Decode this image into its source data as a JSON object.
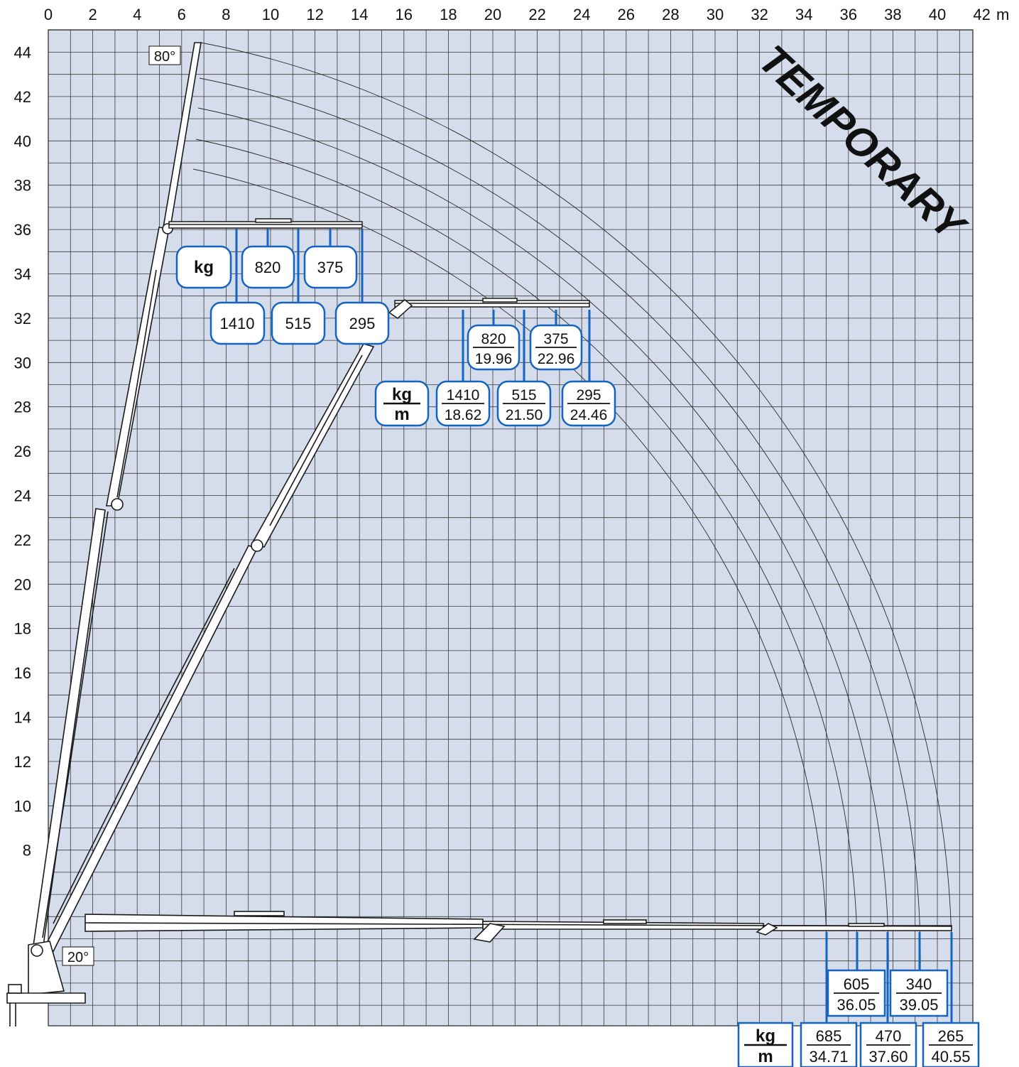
{
  "chart": {
    "x_axis": {
      "ticks": [
        "0",
        "2",
        "4",
        "6",
        "8",
        "10",
        "12",
        "14",
        "16",
        "18",
        "20",
        "22",
        "24",
        "26",
        "28",
        "30",
        "32",
        "34",
        "36",
        "38",
        "40",
        "42"
      ],
      "unit": "m"
    },
    "y_axis": {
      "ticks": [
        "8",
        "10",
        "12",
        "14",
        "16",
        "18",
        "20",
        "22",
        "24",
        "26",
        "28",
        "30",
        "32",
        "34",
        "36",
        "38",
        "40",
        "42",
        "44"
      ]
    },
    "stamp": "TEMPORARY",
    "angle_labels": {
      "top": "80°",
      "bottom": "20°"
    },
    "colors": {
      "grid_bg": "#d5dcec",
      "grid_line": "#3a3a3a",
      "accent_blue": "#1565c0",
      "box_border": "#1565c0"
    }
  },
  "load_tables": {
    "top": {
      "unit_label": "kg",
      "upper": [
        "820",
        "375"
      ],
      "lower": [
        "1410",
        "515",
        "295"
      ]
    },
    "middle": {
      "unit_kg": "kg",
      "unit_m": "m",
      "upper": [
        {
          "kg": "820",
          "m": "19.96"
        },
        {
          "kg": "375",
          "m": "22.96"
        }
      ],
      "lower": [
        {
          "kg": "1410",
          "m": "18.62"
        },
        {
          "kg": "515",
          "m": "21.50"
        },
        {
          "kg": "295",
          "m": "24.46"
        }
      ]
    },
    "bottom": {
      "unit_kg": "kg",
      "unit_m": "m",
      "upper": [
        {
          "kg": "605",
          "m": "36.05"
        },
        {
          "kg": "340",
          "m": "39.05"
        }
      ],
      "lower": [
        {
          "kg": "685",
          "m": "34.71"
        },
        {
          "kg": "470",
          "m": "37.60"
        },
        {
          "kg": "265",
          "m": "40.55"
        }
      ]
    }
  }
}
